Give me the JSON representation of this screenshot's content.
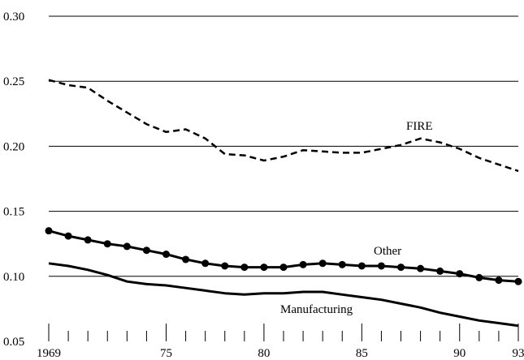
{
  "chart_data": {
    "type": "line",
    "title": "",
    "xlabel": "",
    "ylabel": "",
    "xlim": [
      1969,
      1993
    ],
    "ylim": [
      0.05,
      0.3
    ],
    "grid": "horizontal",
    "legend": "none (direct labels)",
    "x_tick_labels": [
      {
        "x": 1969,
        "label": "1969"
      },
      {
        "x": 1975,
        "label": "75"
      },
      {
        "x": 1980,
        "label": "80"
      },
      {
        "x": 1985,
        "label": "85"
      },
      {
        "x": 1990,
        "label": "90"
      },
      {
        "x": 1993,
        "label": "93"
      }
    ],
    "y_ticks": [
      0.05,
      0.1,
      0.15,
      0.2,
      0.25,
      0.3
    ],
    "y_tick_labels": [
      "0.05",
      "0.10",
      "0.15",
      "0.20",
      "0.25",
      "0.30"
    ],
    "x": [
      1969,
      1970,
      1971,
      1972,
      1973,
      1974,
      1975,
      1976,
      1977,
      1978,
      1979,
      1980,
      1981,
      1982,
      1983,
      1984,
      1985,
      1986,
      1987,
      1988,
      1989,
      1990,
      1991,
      1992,
      1993
    ],
    "series": [
      {
        "name": "FIRE",
        "style": "dashed",
        "color": "#000000",
        "values": [
          0.251,
          0.247,
          0.245,
          0.235,
          0.226,
          0.217,
          0.211,
          0.213,
          0.206,
          0.194,
          0.193,
          0.189,
          0.192,
          0.197,
          0.196,
          0.195,
          0.195,
          0.198,
          0.201,
          0.206,
          0.203,
          0.198,
          0.191,
          0.186,
          0.181
        ]
      },
      {
        "name": "Other",
        "style": "solid-dots",
        "color": "#000000",
        "values": [
          0.135,
          0.131,
          0.128,
          0.125,
          0.123,
          0.12,
          0.117,
          0.113,
          0.11,
          0.108,
          0.107,
          0.107,
          0.107,
          0.109,
          0.11,
          0.109,
          0.108,
          0.108,
          0.107,
          0.106,
          0.104,
          0.102,
          0.099,
          0.097,
          0.096
        ]
      },
      {
        "name": "Manufacturing",
        "style": "solid",
        "color": "#000000",
        "values": [
          0.11,
          0.108,
          0.105,
          0.101,
          0.096,
          0.094,
          0.093,
          0.091,
          0.089,
          0.087,
          0.086,
          0.087,
          0.087,
          0.088,
          0.088,
          0.086,
          0.084,
          0.082,
          0.079,
          0.076,
          0.072,
          0.069,
          0.066,
          0.064,
          0.062
        ]
      }
    ],
    "annotations": [
      {
        "series": "FIRE",
        "text": "FIRE"
      },
      {
        "series": "Other",
        "text": "Other"
      },
      {
        "series": "Manufacturing",
        "text": "Manufacturing"
      }
    ]
  }
}
